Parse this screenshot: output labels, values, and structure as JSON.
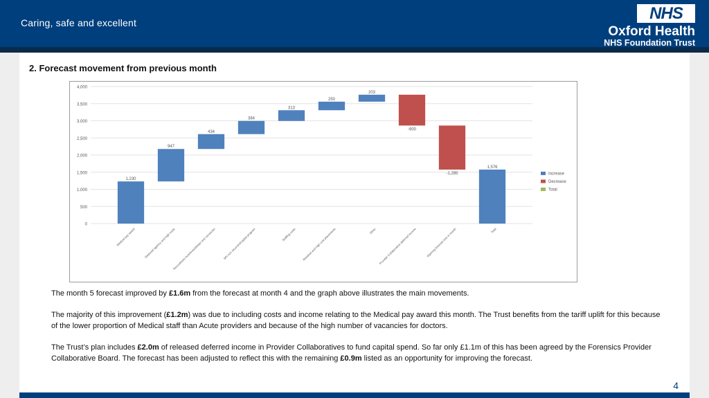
{
  "header": {
    "tagline": "Caring, safe and excellent",
    "logo_nhs": "NHS",
    "logo_org": "Oxford Health",
    "logo_trust": "NHS Foundation Trust"
  },
  "section_title": "2. Forecast movement from previous month",
  "chart_data": {
    "type": "waterfall",
    "ylim": [
      0,
      4000
    ],
    "yticks": [
      "0",
      "500",
      "1,000",
      "1,500",
      "2,000",
      "2,500",
      "3,000",
      "3,500",
      "4,000"
    ],
    "steps": [
      {
        "category": "Medical pay award",
        "value": 1230,
        "label": "1,230",
        "kind": "increase"
      },
      {
        "category": "Reduced agency and high costs",
        "value": 947,
        "label": "947",
        "kind": "increase"
      },
      {
        "category": "Recruitment incentives/delays and vacancies",
        "value": 434,
        "label": "434",
        "kind": "increase"
      },
      {
        "category": "SPI non recurrent/capital program",
        "value": 384,
        "label": "384",
        "kind": "increase"
      },
      {
        "category": "Staffing costs",
        "value": 313,
        "label": "313",
        "kind": "increase"
      },
      {
        "category": "Residual and high cost placements",
        "value": 250,
        "label": "250",
        "kind": "increase"
      },
      {
        "category": "Other",
        "value": 203,
        "label": "203",
        "kind": "increase"
      },
      {
        "category": "Provider Collaborative deferred income",
        "value": -900,
        "label": "-900",
        "kind": "decrease"
      },
      {
        "category": "Opening forecast loss in month",
        "value": -1285,
        "label": "-1,285",
        "kind": "decrease"
      },
      {
        "category": "Total",
        "value": 1576,
        "label": "1,576",
        "kind": "increase"
      }
    ],
    "legend": {
      "position": "right",
      "items": [
        {
          "name": "Increase",
          "color": "#4f81bd"
        },
        {
          "name": "Decrease",
          "color": "#c0504d"
        },
        {
          "name": "Total",
          "color": "#9bbb59"
        }
      ]
    },
    "colors": {
      "increase": "#4f81bd",
      "decrease": "#c0504d",
      "total": "#9bbb59"
    },
    "grid": true
  },
  "paragraphs": [
    [
      {
        "t": "The month 5 forecast improved by ",
        "b": false
      },
      {
        "t": "£1.6m",
        "b": true
      },
      {
        "t": " from the forecast at month 4 and the graph above illustrates the main movements.",
        "b": false
      }
    ],
    [
      {
        "t": "The majority of this improvement (",
        "b": false
      },
      {
        "t": "£1.2m",
        "b": true
      },
      {
        "t": ") was due to including costs and income relating to the Medical pay award this month. The Trust benefits from the tariff uplift for this because of the lower proportion of Medical staff than Acute providers and because of the high number of vacancies for doctors.",
        "b": false
      }
    ],
    [
      {
        "t": "The Trust’s plan includes ",
        "b": false
      },
      {
        "t": "£2.0m",
        "b": true
      },
      {
        "t": " of released deferred income in Provider Collaboratives to fund capital spend. So far only £1.1m of this has been agreed by the Forensics Provider Collaborative Board. The forecast has been adjusted to reflect this with the remaining ",
        "b": false
      },
      {
        "t": "£0.9m",
        "b": true
      },
      {
        "t": " listed as an opportunity for improving the forecast.",
        "b": false
      }
    ]
  ],
  "page_number": "4"
}
